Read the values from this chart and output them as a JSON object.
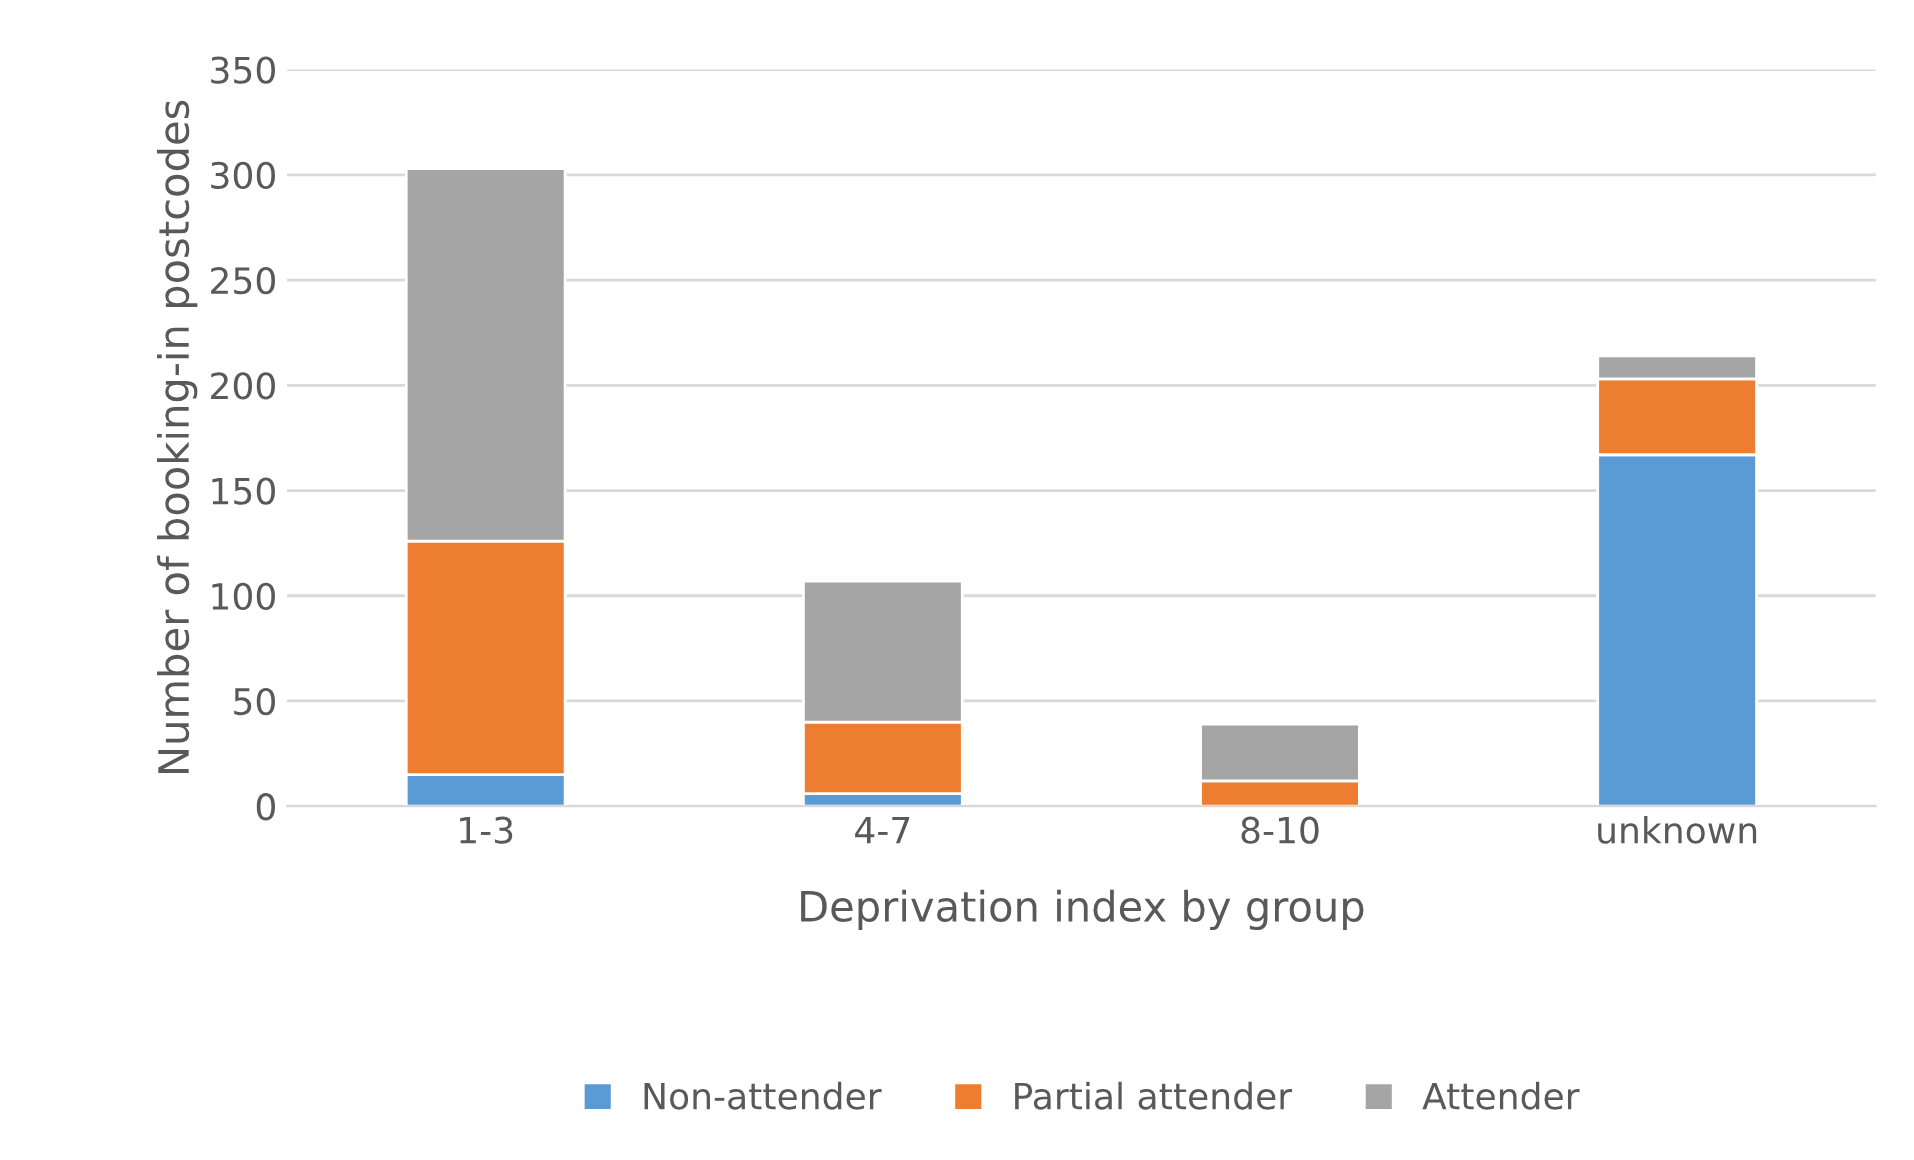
{
  "chart_data": {
    "type": "bar",
    "stacked": true,
    "xlabel": "Deprivation index by group",
    "ylabel": "Number of booking-in postcodes",
    "categories": [
      "1-3",
      "4-7",
      "8-10",
      "unknown"
    ],
    "series": [
      {
        "name": "Non-attender",
        "color": "#5b9bd5",
        "values": [
          15,
          6,
          0,
          167
        ]
      },
      {
        "name": "Partial attender",
        "color": "#ed7d31",
        "values": [
          111,
          34,
          12,
          36
        ]
      },
      {
        "name": "Attender",
        "color": "#a5a5a5",
        "values": [
          177,
          67,
          27,
          11
        ]
      }
    ],
    "ylim": [
      0,
      350
    ],
    "yticks": [
      0,
      50,
      100,
      150,
      200,
      250,
      300,
      350
    ],
    "grid": "y",
    "legend": "bottom"
  }
}
